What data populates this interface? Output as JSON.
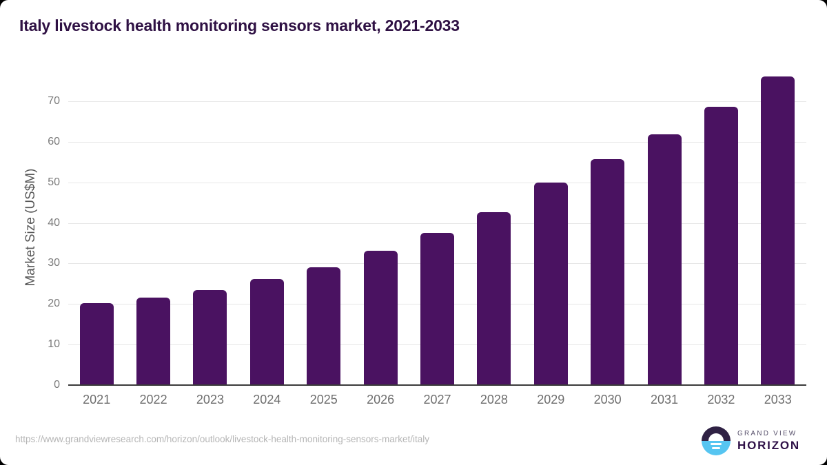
{
  "title": "Italy livestock health monitoring sensors market, 2021-2033",
  "chart_data": {
    "type": "bar",
    "categories": [
      "2021",
      "2022",
      "2023",
      "2024",
      "2025",
      "2026",
      "2027",
      "2028",
      "2029",
      "2030",
      "2031",
      "2032",
      "2033"
    ],
    "values": [
      20.2,
      21.5,
      23.5,
      26.1,
      29.1,
      33.1,
      37.5,
      42.7,
      50.0,
      55.7,
      61.8,
      68.7,
      76.1
    ],
    "title": "Italy livestock health monitoring sensors market, 2021-2033",
    "xlabel": "",
    "ylabel": "Market Size (US$M)",
    "ylim": [
      0,
      78
    ],
    "yticks": [
      0,
      10,
      20,
      30,
      40,
      50,
      60,
      70
    ],
    "grid": true,
    "legend": "none",
    "bar_color": "#4a1261"
  },
  "colors": {
    "title_text": "#2f1144",
    "bar": "#4a1261",
    "gridline": "#e7e7e7",
    "axis_line": "#3a3a3a",
    "tick_text": "#6e6e6e",
    "url_text": "#b5b5b5",
    "logo_dark": "#2f2144",
    "logo_blue": "#56c5f1"
  },
  "footer": {
    "source_url": "https://www.grandviewresearch.com/horizon/outlook/livestock-health-monitoring-sensors-market/italy",
    "logo": {
      "top": "GRAND VIEW",
      "bottom": "HORIZON"
    }
  }
}
